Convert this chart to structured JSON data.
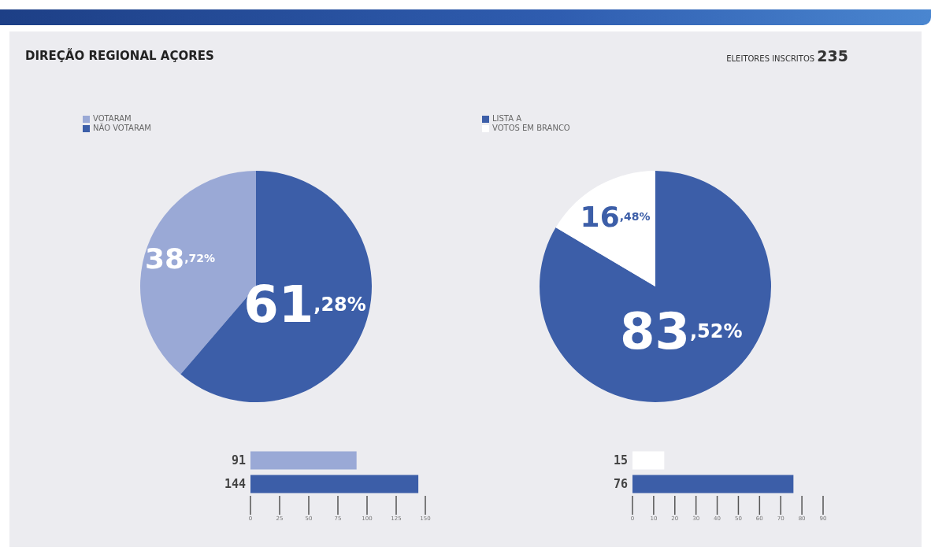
{
  "chart_data": [
    {
      "type": "pie",
      "title": "DIREÇÃO REGIONAL AÇORES",
      "categories": [
        "VOTARAM",
        "NÃO VOTARAM"
      ],
      "values": [
        38.72,
        61.28
      ],
      "colors": [
        "#9aa9d6",
        "#3c5ea8"
      ],
      "value_labels": [
        "38,72%",
        "61,28%"
      ],
      "legend": "top"
    },
    {
      "type": "pie",
      "annotations": [
        "ELEITORES INSCRITOS 235"
      ],
      "categories": [
        "LISTA A",
        "VOTOS EM BRANCO"
      ],
      "values": [
        83.52,
        16.48
      ],
      "colors": [
        "#3c5ea8",
        "#ffffff"
      ],
      "value_labels": [
        "83,52%",
        "16,48%"
      ],
      "legend": "top"
    },
    {
      "type": "bar",
      "orientation": "horizontal",
      "categories": [
        null,
        null
      ],
      "values": [
        91,
        144
      ],
      "colors": [
        "#9aa9d6",
        "#3c5ea8"
      ],
      "xlim": [
        0,
        150
      ],
      "xticks": [
        0,
        25,
        50,
        75,
        100,
        125,
        150
      ],
      "data_labels": true
    },
    {
      "type": "bar",
      "orientation": "horizontal",
      "categories": [
        null,
        null
      ],
      "values": [
        15,
        76
      ],
      "colors": [
        "#ffffff",
        "#3c5ea8"
      ],
      "xlim": [
        0,
        90
      ],
      "xticks": [
        0,
        10,
        20,
        30,
        40,
        50,
        60,
        70,
        80,
        90
      ],
      "data_labels": true
    }
  ]
}
